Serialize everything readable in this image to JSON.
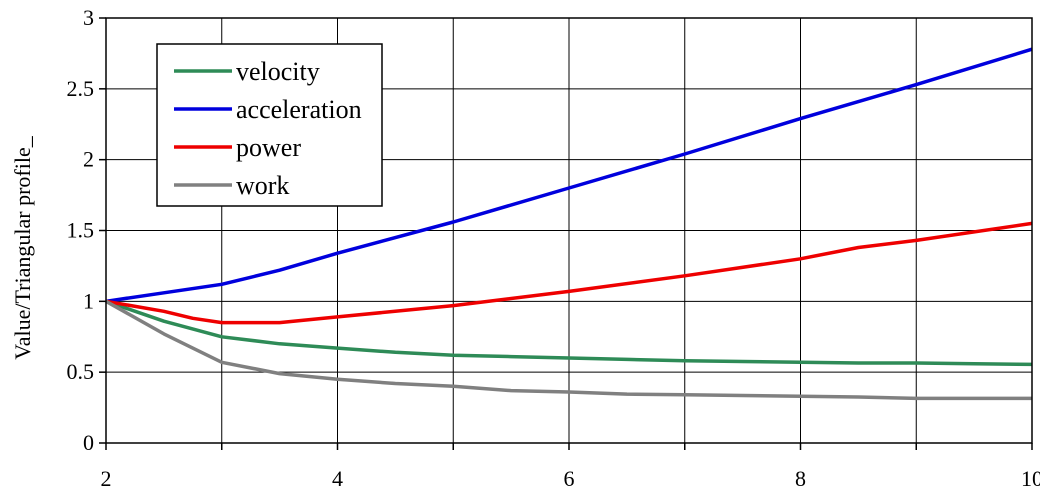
{
  "chart_data": {
    "type": "line",
    "title": "",
    "xlabel": "",
    "ylabel": "Value/Triangular profile_",
    "xlim": [
      2,
      10
    ],
    "ylim": [
      0,
      3
    ],
    "x_ticks": [
      2,
      4,
      6,
      8,
      10
    ],
    "y_ticks": [
      0,
      0.5,
      1,
      1.5,
      2,
      2.5,
      3
    ],
    "x_tick_labels": [
      "2",
      "4",
      "6",
      "8",
      "10"
    ],
    "y_tick_labels": [
      "0",
      "0.5",
      "1",
      "1.5",
      "2",
      "2.5",
      "3"
    ],
    "grid": true,
    "legend_position": "top-left",
    "series": [
      {
        "name": "velocity",
        "color": "#2e8b57",
        "x": [
          2,
          2.5,
          3,
          3.5,
          4,
          4.5,
          5,
          5.5,
          6,
          6.5,
          7,
          7.5,
          8,
          8.5,
          9,
          9.5,
          10
        ],
        "y": [
          1.0,
          0.86,
          0.75,
          0.7,
          0.67,
          0.64,
          0.62,
          0.61,
          0.6,
          0.59,
          0.58,
          0.575,
          0.57,
          0.565,
          0.565,
          0.56,
          0.555
        ]
      },
      {
        "name": "acceleration",
        "color": "#0000dd",
        "x": [
          2,
          2.5,
          3,
          3.25,
          3.5,
          4,
          5,
          6,
          7,
          8,
          9,
          10
        ],
        "y": [
          1.0,
          1.06,
          1.12,
          1.17,
          1.22,
          1.34,
          1.56,
          1.8,
          2.04,
          2.29,
          2.53,
          2.78
        ]
      },
      {
        "name": "power",
        "color": "#ee0000",
        "x": [
          2,
          2.5,
          2.75,
          3,
          3.5,
          4,
          5,
          6,
          7,
          8,
          8.5,
          9,
          10
        ],
        "y": [
          1.0,
          0.93,
          0.88,
          0.85,
          0.85,
          0.89,
          0.97,
          1.07,
          1.18,
          1.3,
          1.38,
          1.43,
          1.55
        ]
      },
      {
        "name": "work",
        "color": "#808080",
        "x": [
          2,
          2.5,
          3,
          3.5,
          4,
          4.5,
          5,
          5.5,
          6,
          6.5,
          7,
          7.5,
          8,
          8.5,
          9,
          9.5,
          10
        ],
        "y": [
          1.0,
          0.77,
          0.57,
          0.49,
          0.45,
          0.42,
          0.4,
          0.37,
          0.36,
          0.345,
          0.34,
          0.335,
          0.33,
          0.325,
          0.315,
          0.315,
          0.315
        ]
      }
    ]
  }
}
